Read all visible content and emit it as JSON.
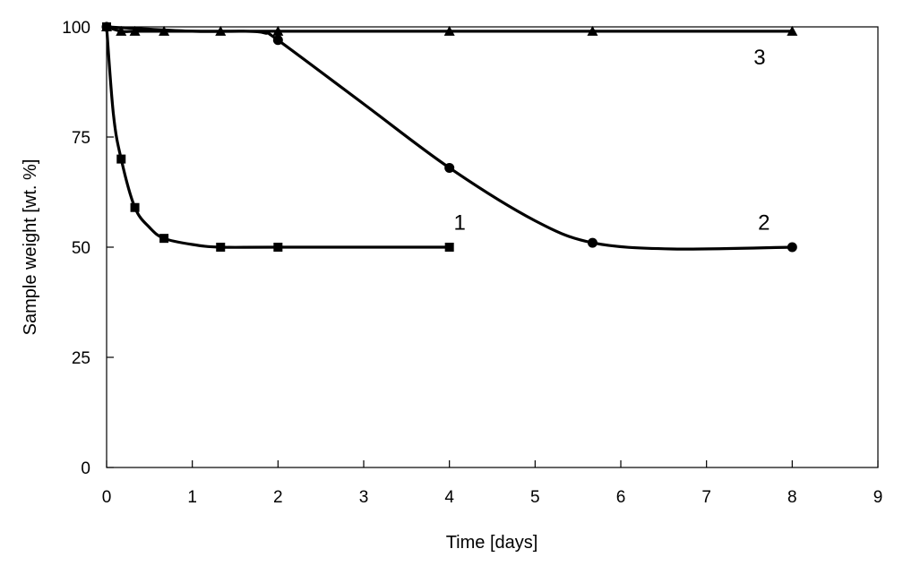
{
  "chart_data": {
    "type": "line",
    "title": "",
    "xlabel": "Time [days]",
    "ylabel": "Sample weight [wt. %]",
    "xlim": [
      0,
      9
    ],
    "ylim": [
      0,
      100
    ],
    "xticks": [
      "0",
      "1",
      "2",
      "3",
      "4",
      "5",
      "6",
      "7",
      "8",
      "9"
    ],
    "yticks": [
      "0",
      "25",
      "50",
      "75",
      "100"
    ],
    "grid": false,
    "legend": "none",
    "series": [
      {
        "name": "1",
        "marker": "square",
        "x": [
          0,
          0.17,
          0.33,
          0.67,
          1.33,
          2,
          4
        ],
        "y": [
          100,
          70,
          59,
          52,
          50,
          50,
          50
        ]
      },
      {
        "name": "2",
        "marker": "circle",
        "x": [
          0,
          2,
          4,
          5.67,
          8
        ],
        "y": [
          100,
          97,
          68,
          51,
          50
        ]
      },
      {
        "name": "3",
        "marker": "triangle",
        "x": [
          0,
          0.17,
          0.33,
          0.67,
          1.33,
          2,
          4,
          5.67,
          8
        ],
        "y": [
          100,
          99,
          99,
          99,
          99,
          99,
          99,
          99,
          99
        ]
      }
    ],
    "curve_control_points": {
      "1": {
        "x": [
          0,
          0.08,
          0.17,
          0.33,
          0.5,
          0.67,
          1,
          1.33,
          2,
          4
        ],
        "y": [
          100,
          80,
          70,
          59,
          54.5,
          52,
          50.6,
          50,
          50,
          50
        ]
      },
      "2": {
        "x": [
          0,
          1,
          1.6,
          1.85,
          2,
          3,
          4,
          5,
          5.67,
          6.6,
          8
        ],
        "y": [
          100,
          99,
          99,
          98.6,
          97,
          82.5,
          68,
          56,
          51,
          49.6,
          50
        ]
      },
      "3": {
        "x": [
          0,
          0.17,
          0.33,
          0.67,
          1.33,
          2,
          4,
          5.67,
          8
        ],
        "y": [
          100,
          99,
          99,
          99,
          99,
          99,
          99,
          99,
          99
        ]
      }
    },
    "series_labels": [
      {
        "text": "1",
        "x": 4.05,
        "y": 54
      },
      {
        "text": "2",
        "x": 7.6,
        "y": 54
      },
      {
        "text": "3",
        "x": 7.55,
        "y": 91.5
      }
    ]
  }
}
